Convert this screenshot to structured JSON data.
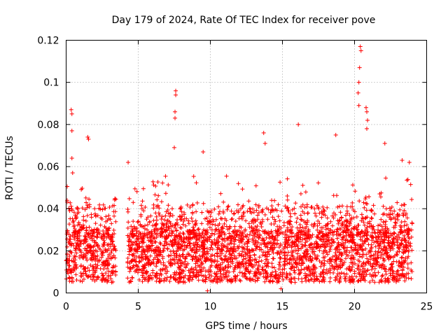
{
  "chart_data": {
    "type": "scatter",
    "title": "Day 179 of 2024, Rate Of TEC Index for receiver pove",
    "xlabel": "GPS time / hours",
    "ylabel": "ROTI / TECUs",
    "xlim": [
      0,
      25
    ],
    "ylim": [
      0,
      0.12
    ],
    "x_ticks": [
      "0",
      "5",
      "10",
      "15",
      "20",
      "25"
    ],
    "y_ticks": [
      "0",
      "0.02",
      "0.04",
      "0.06",
      "0.08",
      "0.1",
      "0.12"
    ],
    "grid": true,
    "marker": "plus",
    "color": "#ff0000",
    "gaps": [
      [
        3.45,
        4.25
      ]
    ],
    "baseline_band": [
      0.005,
      0.03
    ],
    "notable_points": [
      {
        "x": 0.35,
        "y": 0.087
      },
      {
        "x": 0.4,
        "y": 0.085
      },
      {
        "x": 0.4,
        "y": 0.077
      },
      {
        "x": 0.4,
        "y": 0.064
      },
      {
        "x": 0.45,
        "y": 0.057
      },
      {
        "x": 1.5,
        "y": 0.074
      },
      {
        "x": 1.55,
        "y": 0.073
      },
      {
        "x": 4.3,
        "y": 0.062
      },
      {
        "x": 7.6,
        "y": 0.096
      },
      {
        "x": 7.6,
        "y": 0.094
      },
      {
        "x": 7.55,
        "y": 0.086
      },
      {
        "x": 7.55,
        "y": 0.083
      },
      {
        "x": 7.5,
        "y": 0.069
      },
      {
        "x": 9.5,
        "y": 0.067
      },
      {
        "x": 13.7,
        "y": 0.076
      },
      {
        "x": 13.8,
        "y": 0.071
      },
      {
        "x": 16.1,
        "y": 0.08
      },
      {
        "x": 18.7,
        "y": 0.075
      },
      {
        "x": 20.4,
        "y": 0.117
      },
      {
        "x": 20.45,
        "y": 0.115
      },
      {
        "x": 20.35,
        "y": 0.107
      },
      {
        "x": 20.3,
        "y": 0.1
      },
      {
        "x": 20.25,
        "y": 0.095
      },
      {
        "x": 20.3,
        "y": 0.089
      },
      {
        "x": 20.8,
        "y": 0.088
      },
      {
        "x": 20.85,
        "y": 0.086
      },
      {
        "x": 20.9,
        "y": 0.082
      },
      {
        "x": 20.85,
        "y": 0.078
      },
      {
        "x": 22.1,
        "y": 0.071
      },
      {
        "x": 23.3,
        "y": 0.063
      },
      {
        "x": 23.8,
        "y": 0.062
      },
      {
        "x": 9.8,
        "y": 0.001
      },
      {
        "x": 14.9,
        "y": 0.002
      }
    ]
  }
}
